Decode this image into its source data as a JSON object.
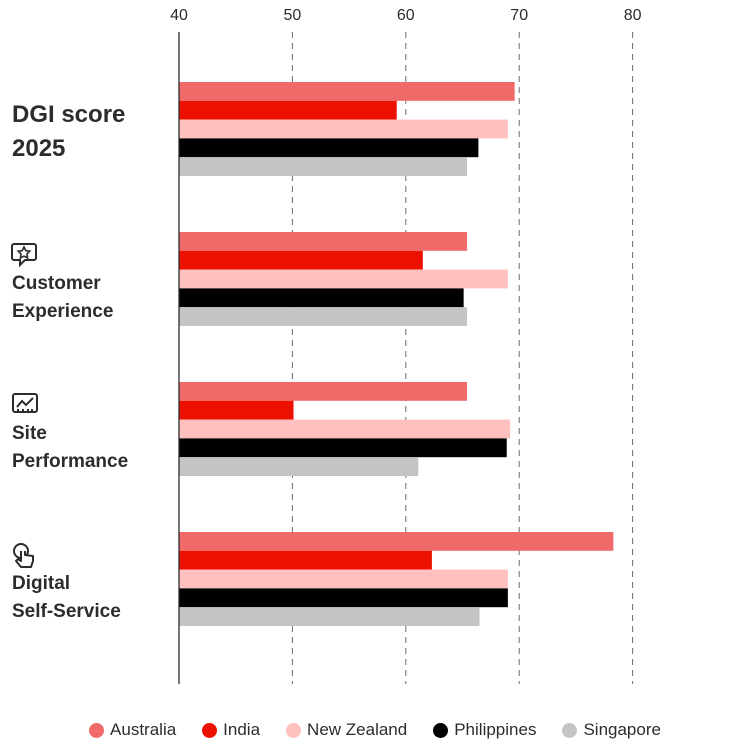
{
  "chart_data": {
    "type": "bar",
    "orientation": "horizontal",
    "xlim": [
      40,
      80
    ],
    "ticks": [
      40,
      50,
      60,
      70,
      80
    ],
    "grid": true,
    "legend_position": "bottom",
    "categories": [
      {
        "lines": [
          "DGI score",
          "2025"
        ],
        "icon": "",
        "emphasis": true
      },
      {
        "lines": [
          "Customer",
          "Experience"
        ],
        "icon": "chat-star-icon",
        "emphasis": false
      },
      {
        "lines": [
          "Site",
          "Performance"
        ],
        "icon": "chart-monitor-icon",
        "emphasis": false
      },
      {
        "lines": [
          "Digital",
          "Self-Service"
        ],
        "icon": "touch-gesture-icon",
        "emphasis": false
      }
    ],
    "series": [
      {
        "name": "Australia",
        "color": "#f06a6a",
        "values": [
          69.6,
          65.4,
          65.4,
          78.3
        ]
      },
      {
        "name": "India",
        "color": "#eb1000",
        "values": [
          59.2,
          61.5,
          50.1,
          62.3
        ]
      },
      {
        "name": "New Zealand",
        "color": "#ffc0bf",
        "values": [
          69.0,
          69.0,
          69.2,
          69.0
        ]
      },
      {
        "name": "Philippines",
        "color": "#000000",
        "values": [
          66.4,
          65.1,
          68.9,
          69.0
        ]
      },
      {
        "name": "Singapore",
        "color": "#c4c4c4",
        "values": [
          65.4,
          65.4,
          61.1,
          66.5
        ]
      }
    ]
  }
}
